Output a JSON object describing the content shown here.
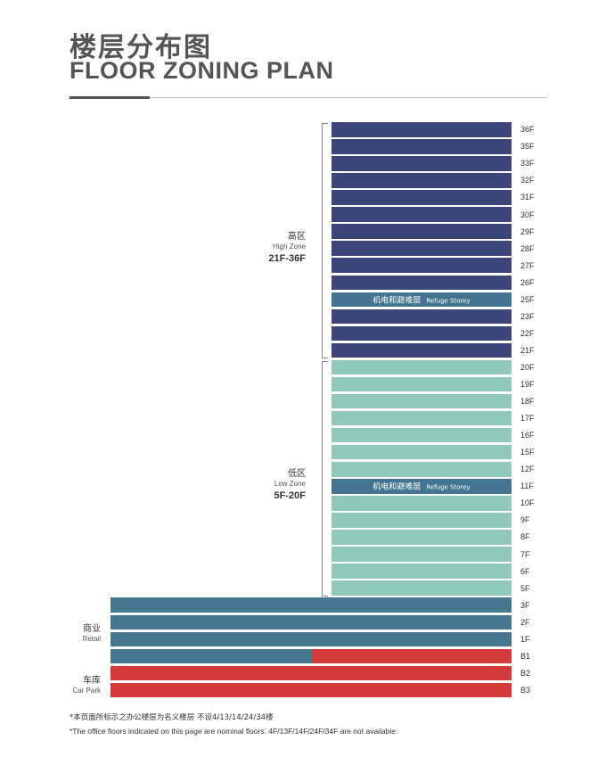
{
  "title_zh": "楼层分布图",
  "title_en": "FLOOR ZONING PLAN",
  "colors": {
    "high": "#3c4579",
    "refuge": "#437590",
    "low": "#8ec9b9",
    "retail": "#45788f",
    "carpark": "#d53a3a"
  },
  "high_zone": {
    "zh": "高区",
    "en": "High Zone",
    "range": "21F-36F"
  },
  "low_zone": {
    "zh": "低区",
    "en": "Low Zone",
    "range": "5F-20F"
  },
  "retail": {
    "zh": "商业",
    "en": "Retail"
  },
  "car_park": {
    "zh": "车库",
    "en": "Car Park"
  },
  "refuge": {
    "zh": "机电和避难层",
    "en": "Refuge Storey"
  },
  "floors": [
    {
      "label": "36F",
      "type": "high"
    },
    {
      "label": "35F",
      "type": "high"
    },
    {
      "label": "33F",
      "type": "high"
    },
    {
      "label": "32F",
      "type": "high"
    },
    {
      "label": "31F",
      "type": "high"
    },
    {
      "label": "30F",
      "type": "high"
    },
    {
      "label": "29F",
      "type": "high"
    },
    {
      "label": "28F",
      "type": "high"
    },
    {
      "label": "27F",
      "type": "high"
    },
    {
      "label": "26F",
      "type": "high"
    },
    {
      "label": "25F",
      "type": "refuge"
    },
    {
      "label": "23F",
      "type": "high"
    },
    {
      "label": "22F",
      "type": "high"
    },
    {
      "label": "21F",
      "type": "high"
    },
    {
      "label": "20F",
      "type": "low"
    },
    {
      "label": "19F",
      "type": "low"
    },
    {
      "label": "18F",
      "type": "low"
    },
    {
      "label": "17F",
      "type": "low"
    },
    {
      "label": "16F",
      "type": "low"
    },
    {
      "label": "15F",
      "type": "low"
    },
    {
      "label": "12F",
      "type": "low"
    },
    {
      "label": "11F",
      "type": "refuge"
    },
    {
      "label": "10F",
      "type": "low"
    },
    {
      "label": "9F",
      "type": "low"
    },
    {
      "label": "8F",
      "type": "low"
    },
    {
      "label": "7F",
      "type": "low"
    },
    {
      "label": "6F",
      "type": "low"
    },
    {
      "label": "5F",
      "type": "low"
    },
    {
      "label": "3F",
      "type": "retail"
    },
    {
      "label": "2F",
      "type": "retail"
    },
    {
      "label": "1F",
      "type": "retail"
    },
    {
      "label": "B1",
      "type": "mixed"
    },
    {
      "label": "B2",
      "type": "carpark"
    },
    {
      "label": "B3",
      "type": "carpark"
    }
  ],
  "note_zh": "*本页面所标示之办公楼层为名义楼层 不设4/13/14/24/34楼",
  "note_en": "*The office floors indicated on this page are nominal floors. 4F/13F/14F/24F/34F are not available."
}
